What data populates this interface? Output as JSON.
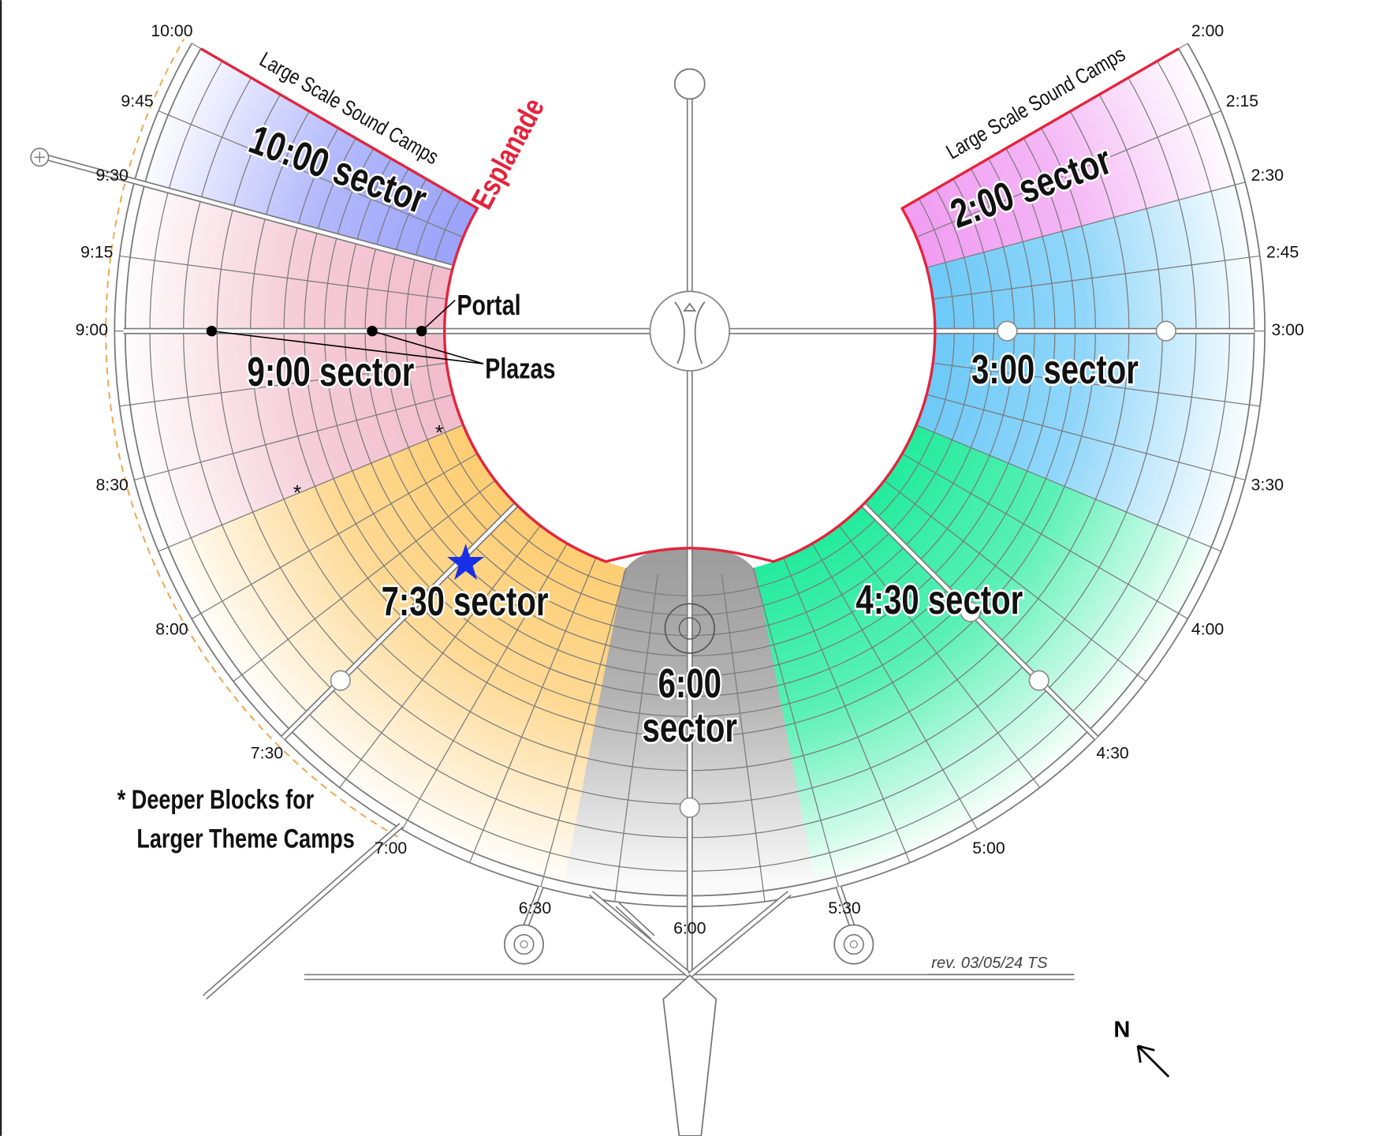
{
  "clock_labels": [
    "10:00",
    "9:45",
    "9:30",
    "9:15",
    "9:00",
    "8:30",
    "8:00",
    "7:30",
    "7:00",
    "6:30",
    "6:00",
    "5:30",
    "5:00",
    "4:30",
    "4:00",
    "3:30",
    "3:00",
    "2:45",
    "2:30",
    "2:15",
    "2:00"
  ],
  "sectors": [
    {
      "label": "10:00 sector"
    },
    {
      "label": "9:00 sector"
    },
    {
      "label": "7:30 sector"
    },
    {
      "label": "4:30 sector"
    },
    {
      "label": "3:00 sector"
    },
    {
      "label": "2:00 sector"
    }
  ],
  "six_sector_label": [
    "6:00",
    "sector"
  ],
  "sound_camp_labels": [
    "Large Scale Sound Camps",
    "Large Scale Sound Camps"
  ],
  "esplanade": "Esplanade",
  "portal": "Portal",
  "plazas": "Plazas",
  "deeper_block_markers": [
    "*",
    "*"
  ],
  "legend": [
    "* Deeper Blocks for",
    "Larger Theme Camps"
  ],
  "revision": "rev. 03/05/24 TS",
  "north": "N"
}
